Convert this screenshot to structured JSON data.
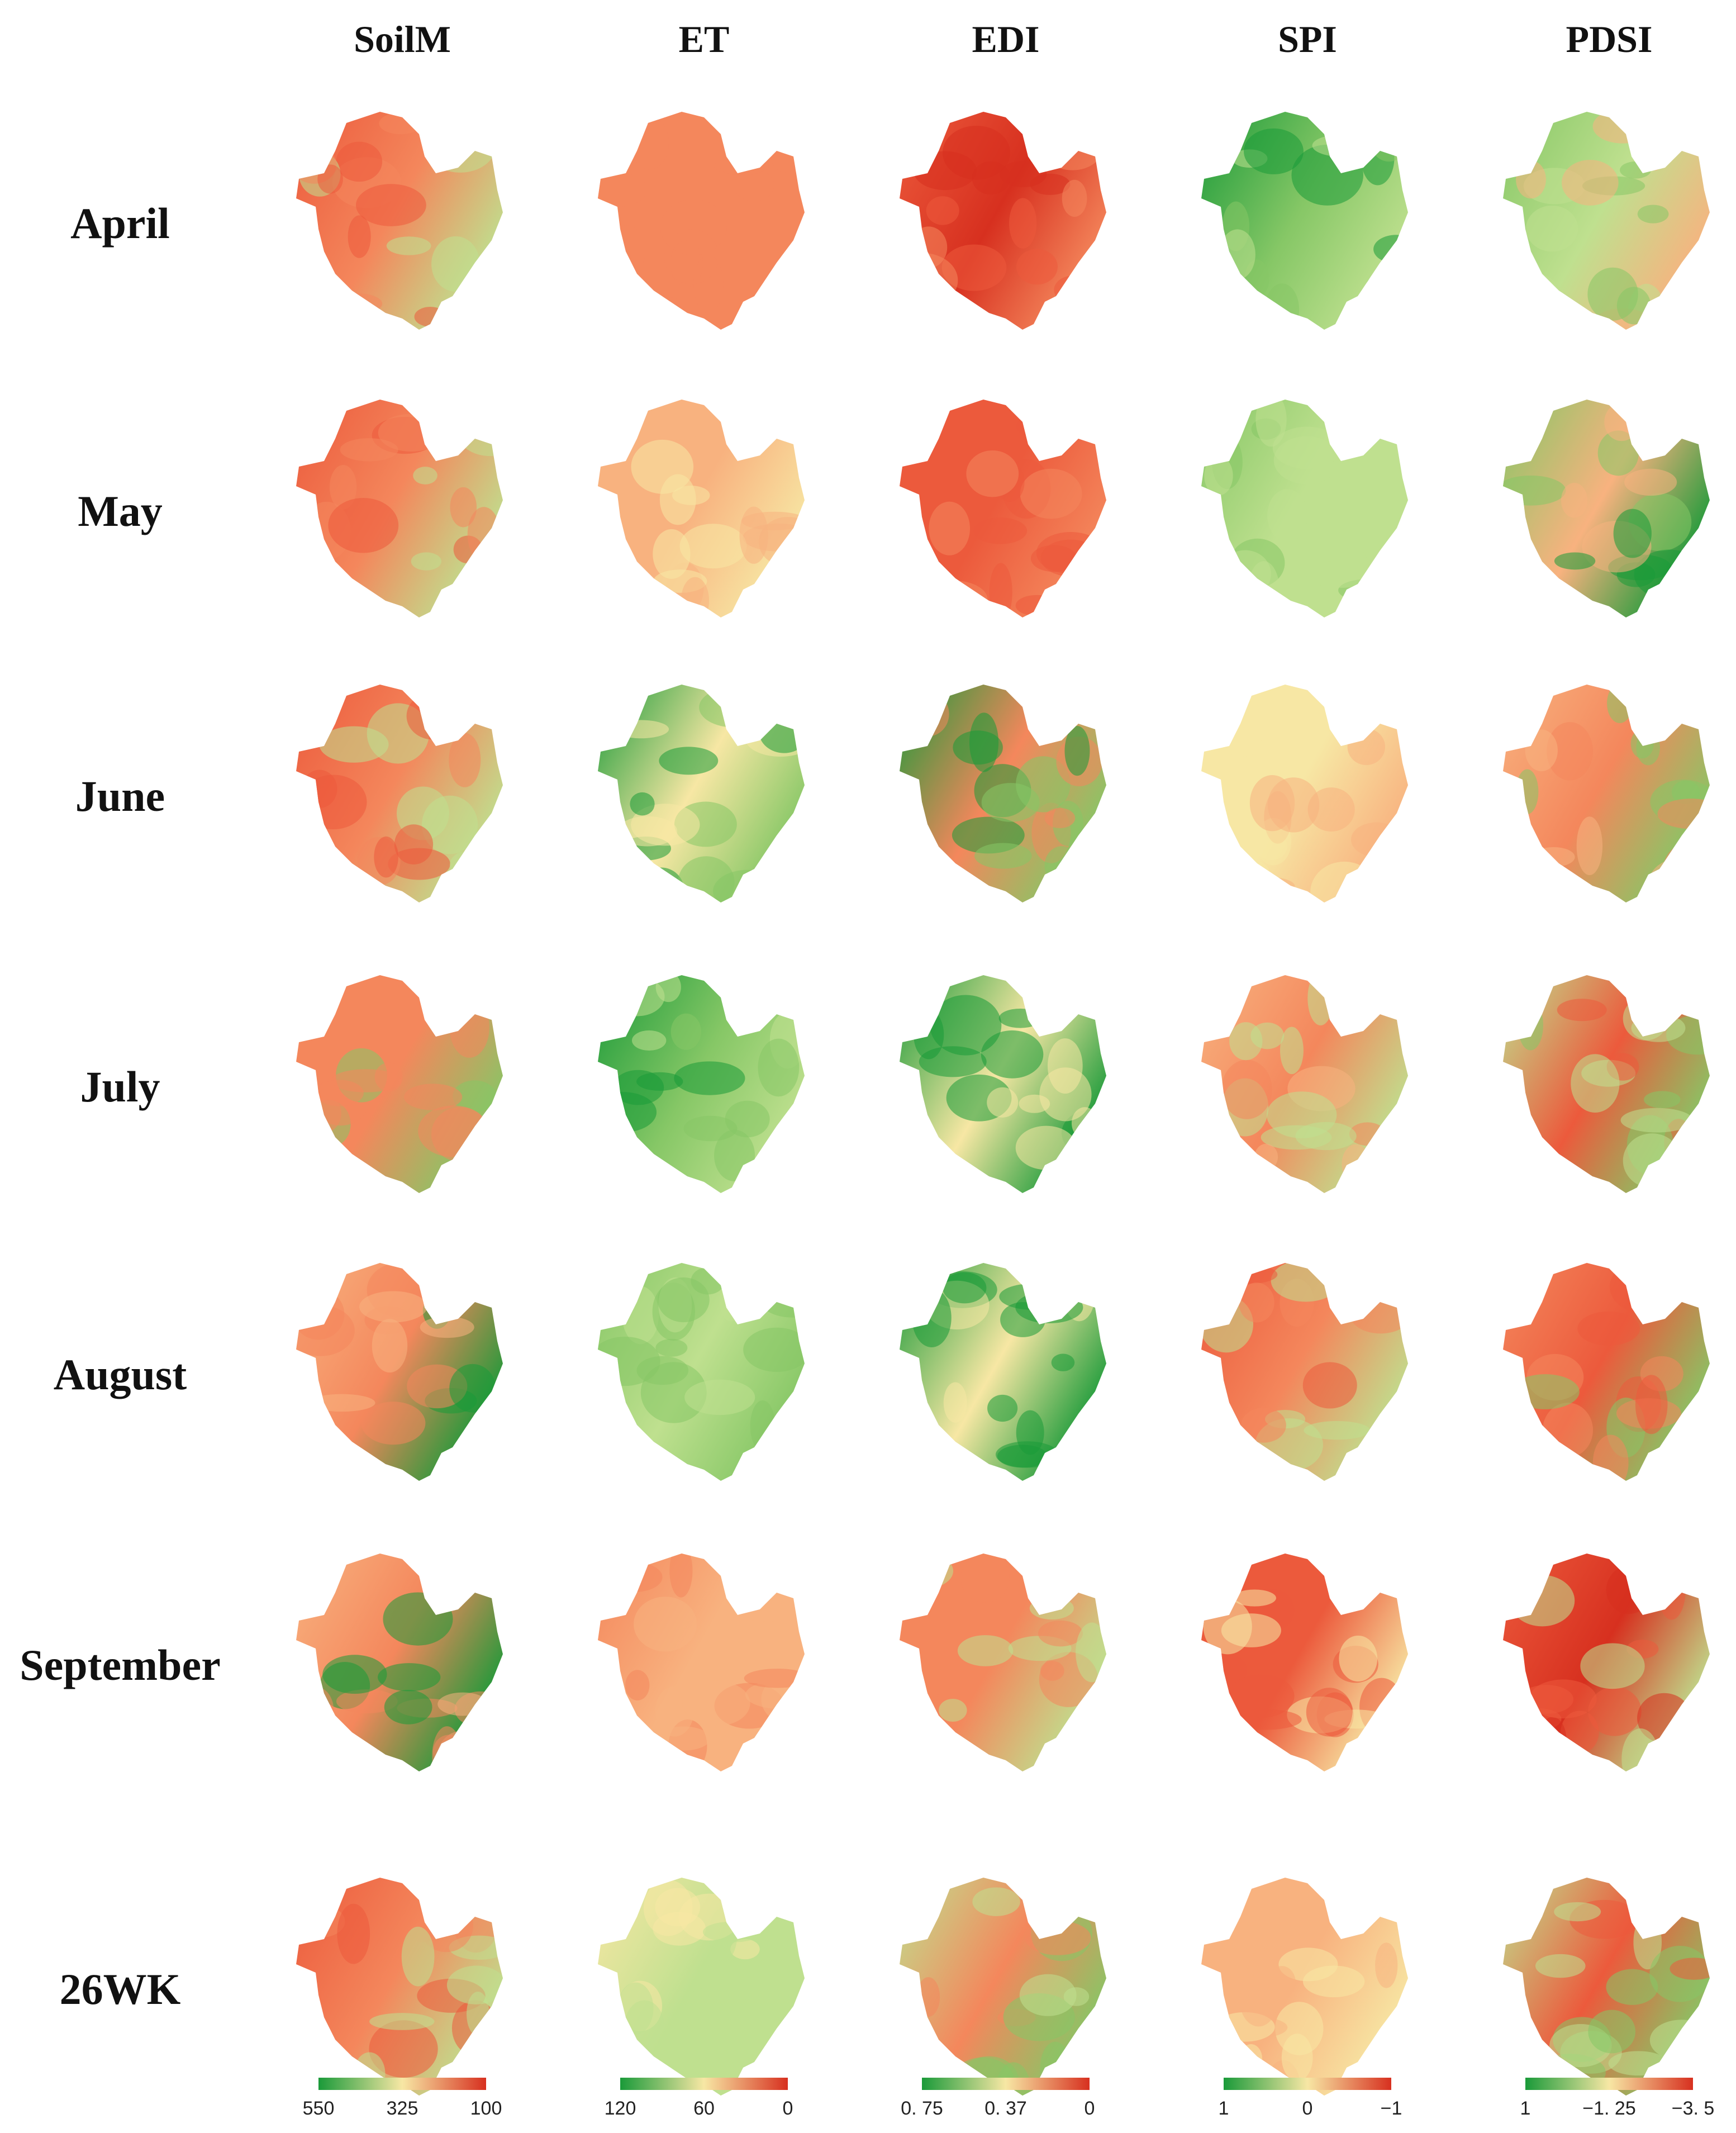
{
  "columns": [
    "SoilM",
    "ET",
    "EDI",
    "SPI",
    "PDSI"
  ],
  "rows": [
    "April",
    "May",
    "June",
    "July",
    "August",
    "September",
    "26WK"
  ],
  "palette": {
    "dark_red": "#d7301f",
    "red": "#ec5a3c",
    "orange": "#f4875c",
    "light_orange": "#f8b27f",
    "cream": "#f7e7a4",
    "light_green": "#bfe08f",
    "green": "#86c766",
    "dark_green": "#1a9a39"
  },
  "legends": [
    {
      "ticks": [
        "550",
        "325",
        "100"
      ],
      "gradient": [
        "#1a9a39",
        "#f7e7a4",
        "#d7301f"
      ]
    },
    {
      "ticks": [
        "120",
        "60",
        "0"
      ],
      "gradient": [
        "#1a9a39",
        "#f7e7a4",
        "#d7301f"
      ]
    },
    {
      "ticks": [
        "0. 75",
        "0. 37",
        "0"
      ],
      "gradient": [
        "#1a9a39",
        "#f7e7a4",
        "#d7301f"
      ]
    },
    {
      "ticks": [
        "1",
        "0",
        "−1"
      ],
      "gradient": [
        "#1a9a39",
        "#f7e7a4",
        "#d7301f"
      ]
    },
    {
      "ticks": [
        "1",
        "−1. 25",
        "−3. 5"
      ],
      "gradient": [
        "#1a9a39",
        "#f7e7a4",
        "#d7301f"
      ]
    }
  ],
  "map_tones": [
    [
      [
        "red",
        "orange",
        "light_green"
      ],
      [
        "orange",
        "orange",
        "orange"
      ],
      [
        "red",
        "dark_red",
        "orange"
      ],
      [
        "dark_green",
        "green",
        "light_green"
      ],
      [
        "green",
        "light_green",
        "light_orange"
      ]
    ],
    [
      [
        "red",
        "orange",
        "light_green"
      ],
      [
        "light_orange",
        "light_orange",
        "cream"
      ],
      [
        "red",
        "red",
        "orange"
      ],
      [
        "green",
        "light_green",
        "light_green"
      ],
      [
        "green",
        "light_orange",
        "dark_green"
      ]
    ],
    [
      [
        "red",
        "orange",
        "light_green"
      ],
      [
        "dark_green",
        "cream",
        "green"
      ],
      [
        "dark_green",
        "orange",
        "green"
      ],
      [
        "cream",
        "cream",
        "light_orange"
      ],
      [
        "light_orange",
        "orange",
        "green"
      ]
    ],
    [
      [
        "orange",
        "orange",
        "green"
      ],
      [
        "dark_green",
        "green",
        "light_green"
      ],
      [
        "dark_green",
        "cream",
        "dark_green"
      ],
      [
        "light_orange",
        "orange",
        "light_green"
      ],
      [
        "light_green",
        "red",
        "green"
      ]
    ],
    [
      [
        "light_orange",
        "orange",
        "dark_green"
      ],
      [
        "green",
        "light_green",
        "green"
      ],
      [
        "dark_green",
        "cream",
        "dark_green"
      ],
      [
        "red",
        "orange",
        "light_green"
      ],
      [
        "orange",
        "red",
        "green"
      ]
    ],
    [
      [
        "light_orange",
        "orange",
        "dark_green"
      ],
      [
        "orange",
        "light_orange",
        "light_orange"
      ],
      [
        "orange",
        "orange",
        "light_green"
      ],
      [
        "red",
        "red",
        "cream"
      ],
      [
        "red",
        "dark_red",
        "light_green"
      ]
    ],
    [
      [
        "red",
        "orange",
        "light_green"
      ],
      [
        "cream",
        "light_green",
        "light_green"
      ],
      [
        "light_green",
        "orange",
        "green"
      ],
      [
        "light_orange",
        "light_orange",
        "cream"
      ],
      [
        "light_green",
        "red",
        "green"
      ]
    ]
  ]
}
